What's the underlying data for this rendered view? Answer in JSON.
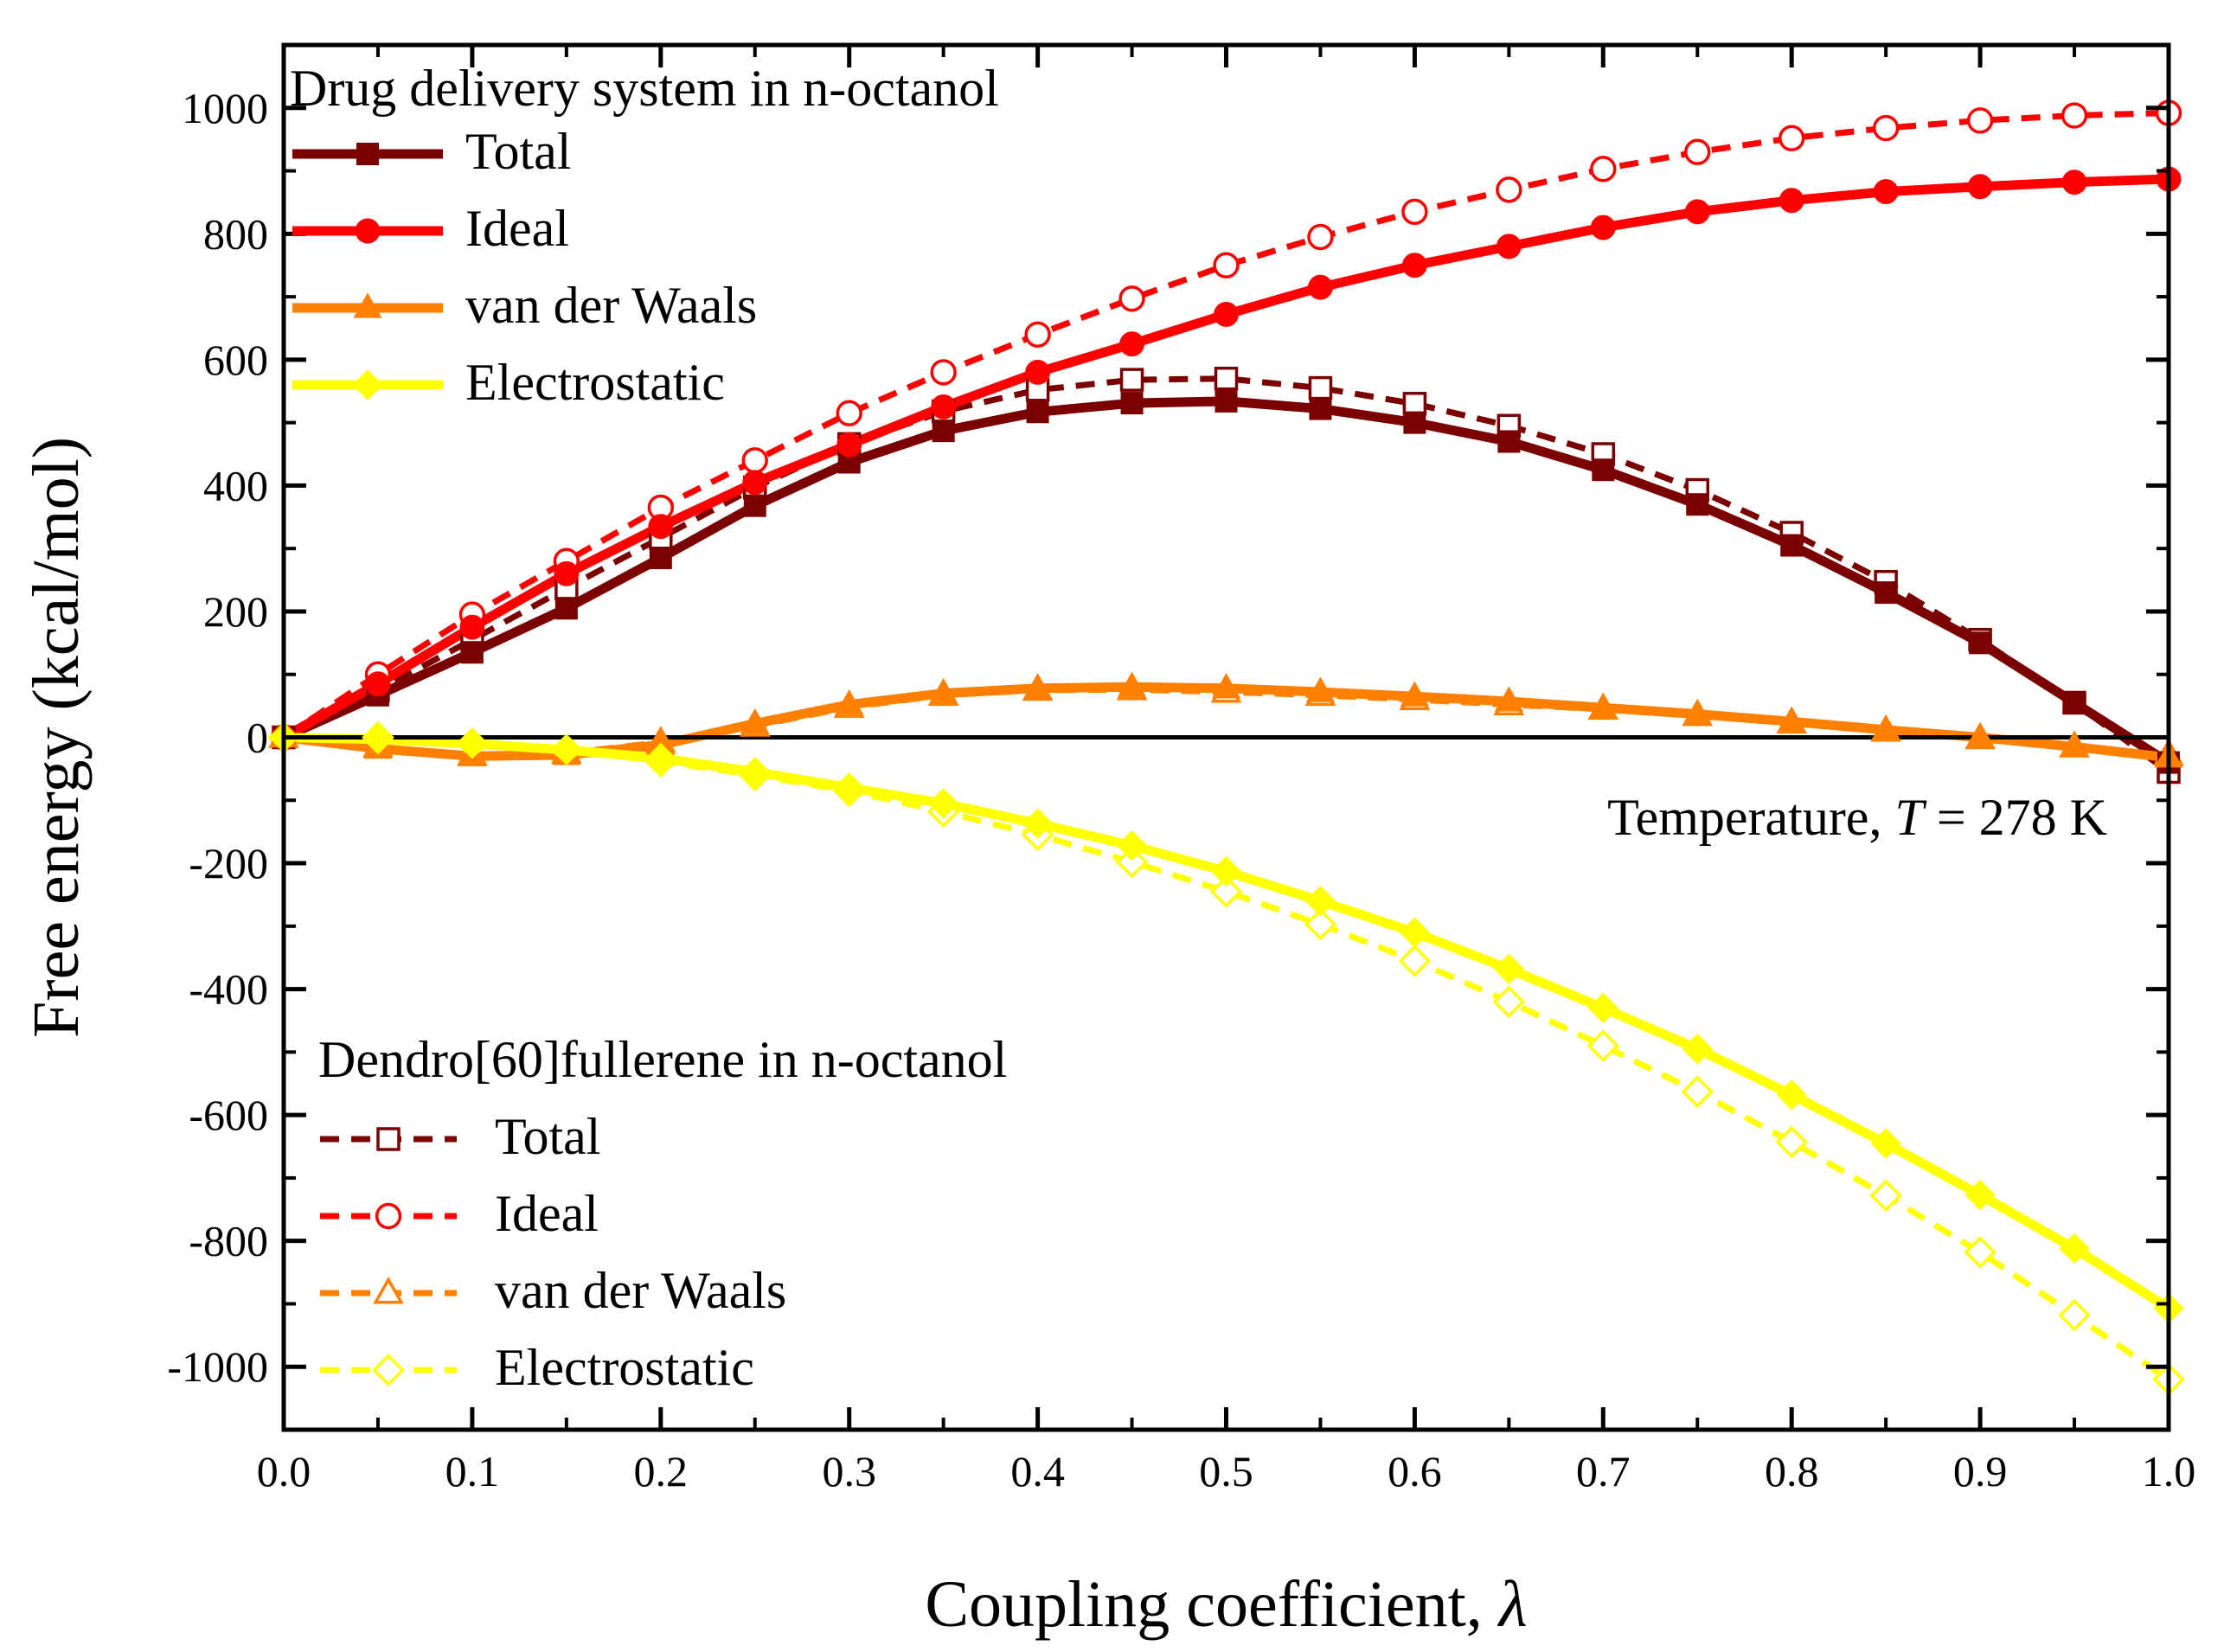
{
  "chart_data": {
    "type": "line",
    "xlabel": "Coupling coefficient,",
    "xlabel_symbol": "λ",
    "ylabel": "Free energy (kcal/mol)",
    "xlim": [
      0.0,
      1.0
    ],
    "ylim": [
      -1100,
      1100
    ],
    "x_ticks": [
      0.0,
      0.1,
      0.2,
      0.3,
      0.4,
      0.5,
      0.6,
      0.7,
      0.8,
      0.9,
      1.0
    ],
    "x_tick_labels": [
      "0.0",
      "0.1",
      "0.2",
      "0.3",
      "0.4",
      "0.5",
      "0.6",
      "0.7",
      "0.8",
      "0.9",
      "1.0"
    ],
    "y_ticks": [
      1000,
      800,
      600,
      400,
      200,
      0,
      -200,
      -400,
      -600,
      -800,
      -1000
    ],
    "y_tick_labels": [
      "1000",
      "800",
      "600",
      "400",
      "200",
      "0",
      "-200",
      "-400",
      "-600",
      "-800",
      "-1000"
    ],
    "x": [
      0.0,
      0.05,
      0.1,
      0.15,
      0.2,
      0.25,
      0.3,
      0.35,
      0.4,
      0.45,
      0.5,
      0.55,
      0.6,
      0.65,
      0.7,
      0.75,
      0.8,
      0.85,
      0.9,
      0.95,
      1.0
    ],
    "zero_line": true,
    "annotation": {
      "prefix": "Temperature, ",
      "symbol": "T",
      "suffix": " = 278 K"
    },
    "legends": [
      {
        "title": "Drug delivery system in n-octanol",
        "entries": [
          "Total",
          "Ideal",
          "van der Waals",
          "Electrostatic"
        ]
      },
      {
        "title": "Dendro[60]fullerene in n-octanol",
        "entries": [
          "Total",
          "Ideal",
          "van der Waals",
          "Electrostatic"
        ]
      }
    ],
    "series": [
      {
        "name": "Total",
        "group": "Drug delivery system in n-octanol",
        "color": "#7b0000",
        "marker": "square",
        "filled": true,
        "dashed": false,
        "values": [
          0,
          67,
          135,
          205,
          285,
          368,
          437,
          487,
          517,
          531,
          534,
          522,
          500,
          470,
          425,
          370,
          305,
          230,
          150,
          55,
          -40
        ]
      },
      {
        "name": "Ideal",
        "group": "Drug delivery system in n-octanol",
        "color": "#ff0000",
        "marker": "circle",
        "filled": true,
        "dashed": false,
        "values": [
          0,
          85,
          175,
          260,
          335,
          405,
          465,
          525,
          580,
          625,
          672,
          715,
          750,
          780,
          810,
          835,
          853,
          867,
          875,
          882,
          887
        ]
      },
      {
        "name": "van der Waals",
        "group": "Drug delivery system in n-octanol",
        "color": "#ff8000",
        "marker": "triangle",
        "filled": true,
        "dashed": false,
        "values": [
          0,
          -18,
          -30,
          -28,
          -12,
          22,
          52,
          70,
          78,
          80,
          78,
          72,
          65,
          57,
          47,
          37,
          25,
          12,
          0,
          -15,
          -32
        ]
      },
      {
        "name": "Electrostatic",
        "group": "Drug delivery system in n-octanol",
        "color": "#ffff00",
        "marker": "diamond",
        "filled": true,
        "dashed": false,
        "values": [
          0,
          -3,
          -10,
          -20,
          -33,
          -55,
          -80,
          -105,
          -137,
          -172,
          -213,
          -260,
          -310,
          -368,
          -430,
          -495,
          -568,
          -645,
          -727,
          -812,
          -907
        ]
      },
      {
        "name": "Total",
        "group": "Dendro[60]fullerene in n-octanol",
        "color": "#7b0000",
        "marker": "square",
        "filled": false,
        "dashed": true,
        "values": [
          0,
          75,
          155,
          237,
          317,
          397,
          466,
          518,
          552,
          568,
          570,
          555,
          530,
          495,
          450,
          393,
          325,
          247,
          155,
          55,
          -55
        ]
      },
      {
        "name": "Ideal",
        "group": "Dendro[60]fullerene in n-octanol",
        "color": "#ff0000",
        "marker": "circle",
        "filled": false,
        "dashed": true,
        "values": [
          0,
          100,
          195,
          280,
          365,
          440,
          515,
          580,
          640,
          697,
          750,
          795,
          835,
          870,
          903,
          930,
          952,
          968,
          980,
          988,
          992
        ]
      },
      {
        "name": "van der Waals",
        "group": "Dendro[60]fullerene in n-octanol",
        "color": "#ff8000",
        "marker": "triangle",
        "filled": false,
        "dashed": true,
        "values": [
          0,
          -15,
          -28,
          -25,
          -8,
          18,
          48,
          67,
          75,
          76,
          72,
          67,
          60,
          52,
          45,
          35,
          23,
          10,
          -2,
          -15,
          -28
        ]
      },
      {
        "name": "Electrostatic",
        "group": "Dendro[60]fullerene in n-octanol",
        "color": "#ffff00",
        "marker": "diamond",
        "filled": false,
        "dashed": true,
        "values": [
          0,
          0,
          -10,
          -20,
          -38,
          -60,
          -85,
          -118,
          -155,
          -198,
          -245,
          -297,
          -355,
          -420,
          -490,
          -563,
          -643,
          -728,
          -818,
          -918,
          -1020
        ]
      }
    ]
  }
}
